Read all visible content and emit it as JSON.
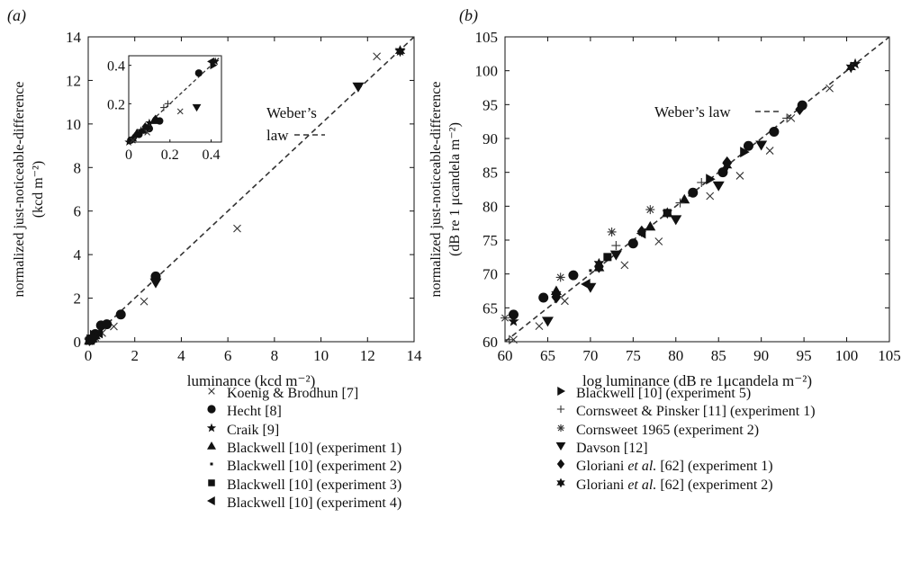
{
  "panel_labels": {
    "a": "(a)",
    "b": "(b)"
  },
  "chart_data": [
    {
      "type": "scatter",
      "panel": "(a)",
      "xlabel": "luminance (kcd m⁻²)",
      "ylabel_line1": "normalized just-noticeable-difference",
      "ylabel_line2": "(kcd m⁻²)",
      "xlim": [
        0,
        14
      ],
      "ylim": [
        0,
        14
      ],
      "ticks": [
        0,
        2,
        4,
        6,
        8,
        10,
        12,
        14
      ],
      "annotation_line1": "Weber’s",
      "annotation_line2": "law",
      "reference_line": {
        "name": "Weber's law",
        "x": [
          0,
          14
        ],
        "y": [
          0,
          14
        ]
      },
      "series": [
        {
          "name": "Koenig & Brodhun [7]",
          "marker": "x",
          "points": [
            [
              0.05,
              0.05
            ],
            [
              0.15,
              0.1
            ],
            [
              0.3,
              0.2
            ],
            [
              0.6,
              0.4
            ],
            [
              1.1,
              0.7
            ],
            [
              2.4,
              1.85
            ],
            [
              6.4,
              5.2
            ],
            [
              12.4,
              13.1
            ]
          ]
        },
        {
          "name": "Hecht [8]",
          "marker": "circle",
          "points": [
            [
              0.1,
              0.1
            ],
            [
              0.3,
              0.35
            ],
            [
              0.55,
              0.75
            ],
            [
              0.8,
              0.8
            ],
            [
              1.4,
              1.25
            ],
            [
              2.9,
              3.0
            ]
          ]
        },
        {
          "name": "Craik [9]",
          "marker": "star",
          "points": [
            [
              0.05,
              0.05
            ],
            [
              0.2,
              0.2
            ],
            [
              13.4,
              13.35
            ]
          ]
        },
        {
          "name": "Blackwell [10] (experiment 1)",
          "marker": "triangle-up",
          "points": [
            [
              0.05,
              0.05
            ],
            [
              0.15,
              0.15
            ],
            [
              0.3,
              0.3
            ]
          ]
        },
        {
          "name": "Blackwell [10] (experiment 2)",
          "marker": "dot",
          "points": [
            [
              0.02,
              0.02
            ],
            [
              0.06,
              0.05
            ]
          ]
        },
        {
          "name": "Blackwell [10] (experiment 3)",
          "marker": "square",
          "points": [
            [
              0.05,
              0.05
            ],
            [
              0.12,
              0.12
            ]
          ]
        },
        {
          "name": "Blackwell [10] (experiment 4)",
          "marker": "triangle-left",
          "points": [
            [
              0.1,
              0.1
            ],
            [
              0.2,
              0.2
            ],
            [
              0.45,
              0.4
            ]
          ]
        },
        {
          "name": "Blackwell [10] (experiment 5)",
          "marker": "triangle-right",
          "points": [
            [
              0.1,
              0.1
            ],
            [
              0.25,
              0.3
            ]
          ]
        },
        {
          "name": "Davson [12]",
          "marker": "triangle-down",
          "points": [
            [
              2.9,
              2.7
            ],
            [
              11.6,
              11.7
            ]
          ]
        },
        {
          "name": "Gloriani et al. [62] (experiment 1)",
          "marker": "diamond",
          "points": [
            [
              0.1,
              0.1
            ],
            [
              0.3,
              0.3
            ]
          ]
        },
        {
          "name": "Gloriani et al. [62] (experiment 2)",
          "marker": "star6",
          "points": [
            [
              0.05,
              0.05
            ],
            [
              0.2,
              0.2
            ],
            [
              13.4,
              13.35
            ]
          ]
        }
      ],
      "inset": {
        "xlim": [
          0,
          0.45
        ],
        "ylim": [
          0,
          0.45
        ],
        "ticks": [
          0,
          0.2,
          0.4
        ],
        "tick_labels": [
          "0",
          "0.2",
          "0.4"
        ],
        "series": [
          {
            "marker": "circle",
            "points": [
              [
                0.01,
                0.01
              ],
              [
                0.05,
                0.04
              ],
              [
                0.1,
                0.07
              ],
              [
                0.15,
                0.11
              ],
              [
                0.34,
                0.36
              ]
            ]
          },
          {
            "marker": "triangle-up",
            "points": [
              [
                0.02,
                0.02
              ],
              [
                0.04,
                0.05
              ],
              [
                0.07,
                0.06
              ],
              [
                0.12,
                0.11
              ]
            ]
          },
          {
            "marker": "diamond",
            "points": [
              [
                0.03,
                0.03
              ],
              [
                0.08,
                0.08
              ],
              [
                0.13,
                0.12
              ]
            ]
          },
          {
            "marker": "star",
            "points": [
              [
                0.0,
                0.0
              ],
              [
                0.02,
                0.01
              ],
              [
                0.06,
                0.06
              ],
              [
                0.1,
                0.1
              ],
              [
                0.42,
                0.42
              ]
            ]
          },
          {
            "marker": "triangle-right",
            "points": [
              [
                0.41,
                0.4
              ]
            ]
          },
          {
            "marker": "triangle-left",
            "points": [
              [
                0.4,
                0.42
              ]
            ]
          },
          {
            "marker": "x",
            "points": [
              [
                0.02,
                0.01
              ],
              [
                0.09,
                0.05
              ],
              [
                0.25,
                0.16
              ]
            ]
          },
          {
            "marker": "plus",
            "points": [
              [
                0.17,
                0.18
              ],
              [
                0.19,
                0.2
              ]
            ]
          },
          {
            "marker": "triangle-down",
            "points": [
              [
                0.33,
                0.18
              ]
            ]
          }
        ]
      }
    },
    {
      "type": "scatter",
      "panel": "(b)",
      "xlabel": "log luminance (dB re 1μcandela m⁻²)",
      "ylabel_line1": "normalized just-noticeable-difference",
      "ylabel_line2": "(dB re 1 μcandela m⁻²)",
      "xlim": [
        60,
        105
      ],
      "ylim": [
        60,
        105
      ],
      "ticks": [
        60,
        65,
        70,
        75,
        80,
        85,
        90,
        95,
        100,
        105
      ],
      "annotation": "Weber’s law",
      "reference_line": {
        "name": "Weber's law",
        "x": [
          60,
          105
        ],
        "y": [
          60,
          105
        ]
      },
      "series": [
        {
          "name": "Koenig & Brodhun [7]",
          "marker": "x",
          "points": [
            [
              61,
              60.3
            ],
            [
              64,
              62.3
            ],
            [
              67,
              66
            ],
            [
              74,
              71.3
            ],
            [
              78,
              74.8
            ],
            [
              84,
              81.5
            ],
            [
              87.5,
              84.5
            ],
            [
              91,
              88.2
            ],
            [
              93.5,
              93
            ],
            [
              98,
              97.4
            ]
          ]
        },
        {
          "name": "Hecht [8]",
          "marker": "circle",
          "points": [
            [
              61,
              64
            ],
            [
              64.5,
              66.5
            ],
            [
              68,
              69.8
            ],
            [
              75,
              74.5
            ],
            [
              82,
              82
            ],
            [
              85.5,
              85
            ],
            [
              88.5,
              88.9
            ],
            [
              91.5,
              91
            ],
            [
              94.8,
              94.9
            ]
          ]
        },
        {
          "name": "Craik [9]",
          "marker": "star",
          "points": [
            [
              61,
              63
            ],
            [
              101,
              101
            ]
          ]
        },
        {
          "name": "Blackwell [10] (experiment 1)",
          "marker": "triangle-up",
          "points": [
            [
              66,
              67.5
            ],
            [
              71,
              71
            ],
            [
              77,
              77
            ],
            [
              81,
              81
            ]
          ]
        },
        {
          "name": "Blackwell [10] (experiment 2)",
          "marker": "dot",
          "points": [
            [
              70,
              70.5
            ]
          ]
        },
        {
          "name": "Blackwell [10] (experiment 3)",
          "marker": "square",
          "points": [
            [
              72,
              72.5
            ],
            [
              79,
              79
            ]
          ]
        },
        {
          "name": "Blackwell [10] (experiment 4)",
          "marker": "triangle-left",
          "points": [
            [
              69.5,
              68.5
            ],
            [
              76,
              76
            ]
          ]
        },
        {
          "name": "Blackwell [10] (experiment 5)",
          "marker": "triangle-right",
          "points": [
            [
              84,
              84
            ],
            [
              88,
              88
            ]
          ]
        },
        {
          "name": "Cornsweet & Pinsker [11] (experiment 1)",
          "marker": "plus",
          "points": [
            [
              60.5,
              60.3
            ],
            [
              73,
              74.2
            ],
            [
              80.5,
              80.5
            ],
            [
              83,
              83.5
            ],
            [
              93,
              93
            ]
          ]
        },
        {
          "name": "Cornsweet 1965 (experiment 2)",
          "marker": "asterisk",
          "points": [
            [
              60,
              63.5
            ],
            [
              66.5,
              69.5
            ],
            [
              72.5,
              76.2
            ],
            [
              77,
              79.5
            ]
          ]
        },
        {
          "name": "Davson [12]",
          "marker": "triangle-down",
          "points": [
            [
              65,
              63
            ],
            [
              70,
              68
            ],
            [
              73,
              72.8
            ],
            [
              80,
              78
            ],
            [
              85,
              83
            ],
            [
              90,
              89
            ]
          ]
        },
        {
          "name": "Gloriani et al. [62] (experiment 1)",
          "marker": "diamond",
          "points": [
            [
              66,
              66.5
            ],
            [
              71,
              71
            ],
            [
              76,
              76.3
            ],
            [
              86,
              86.5
            ],
            [
              94.5,
              94.3
            ]
          ]
        },
        {
          "name": "Gloriani et al. [62] (experiment 2)",
          "marker": "star6",
          "points": [
            [
              66,
              67
            ],
            [
              71,
              71.5
            ],
            [
              79,
              79
            ],
            [
              86,
              86
            ],
            [
              100.5,
              100.5
            ]
          ]
        }
      ]
    }
  ],
  "legend_left": [
    {
      "marker": "x",
      "pre": "Koenig & Brodhun [7]",
      "ital": "",
      "post": ""
    },
    {
      "marker": "circle",
      "pre": "Hecht [8]",
      "ital": "",
      "post": ""
    },
    {
      "marker": "star",
      "pre": "Craik [9]",
      "ital": "",
      "post": ""
    },
    {
      "marker": "triangle-up",
      "pre": "Blackwell [10] (experiment 1)",
      "ital": "",
      "post": ""
    },
    {
      "marker": "dot",
      "pre": "Blackwell [10] (experiment 2)",
      "ital": "",
      "post": ""
    },
    {
      "marker": "square",
      "pre": "Blackwell [10] (experiment 3)",
      "ital": "",
      "post": ""
    },
    {
      "marker": "triangle-left",
      "pre": "Blackwell [10] (experiment 4)",
      "ital": "",
      "post": ""
    }
  ],
  "legend_right": [
    {
      "marker": "triangle-right",
      "pre": "Blackwell [10] (experiment 5)",
      "ital": "",
      "post": ""
    },
    {
      "marker": "plus",
      "pre": "Cornsweet & Pinsker [11] (experiment 1)",
      "ital": "",
      "post": ""
    },
    {
      "marker": "asterisk",
      "pre": "Cornsweet 1965 (experiment 2)",
      "ital": "",
      "post": ""
    },
    {
      "marker": "triangle-down",
      "pre": "Davson [12]",
      "ital": "",
      "post": ""
    },
    {
      "marker": "diamond",
      "pre": "Gloriani ",
      "ital": "et al.",
      "post": " [62] (experiment 1)"
    },
    {
      "marker": "star6",
      "pre": "Gloriani ",
      "ital": "et al.",
      "post": " [62] (experiment 2)"
    }
  ]
}
